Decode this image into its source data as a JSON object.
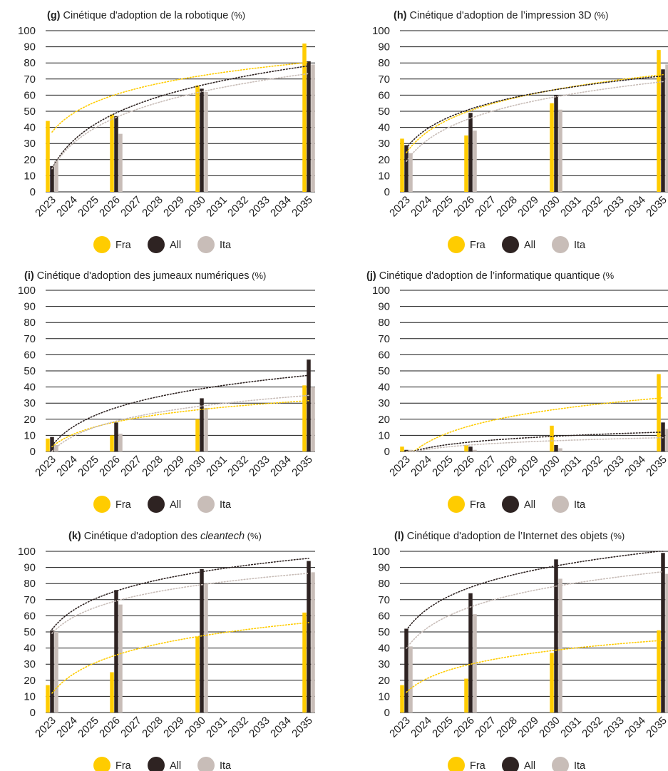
{
  "colors": {
    "fra": "#FFCC00",
    "all": "#2E2322",
    "ita": "#C8BDB8",
    "grid": "#1a1a1a",
    "text": "#222222"
  },
  "legend": [
    "Fra",
    "All",
    "Ita"
  ],
  "chart_data": [
    {
      "type": "bar",
      "title_label": "(g)",
      "title": "Cinétique d'adoption de la robotique",
      "title_suffix": "(%)",
      "ylim": [
        0,
        100
      ],
      "y_ticks": [
        0,
        10,
        20,
        30,
        40,
        50,
        60,
        70,
        80,
        90,
        100
      ],
      "x_ticks": [
        "2023",
        "2024",
        "2025",
        "2026",
        "2027",
        "2028",
        "2029",
        "2030",
        "2031",
        "2032",
        "2033",
        "2034",
        "2035"
      ],
      "bar_years": [
        "2023",
        "2026",
        "2030",
        "2035"
      ],
      "trendline": "logarithmic",
      "series": [
        {
          "name": "Fra",
          "values": [
            44,
            48,
            66,
            92
          ]
        },
        {
          "name": "All",
          "values": [
            16,
            47,
            64,
            81
          ]
        },
        {
          "name": "Ita",
          "values": [
            19,
            36,
            62,
            79
          ]
        }
      ]
    },
    {
      "type": "bar",
      "title_label": "(h)",
      "title": "Cinétique d'adoption de l’impression 3D",
      "title_suffix": "(%)",
      "ylim": [
        0,
        100
      ],
      "y_ticks": [
        0,
        10,
        20,
        30,
        40,
        50,
        60,
        70,
        80,
        90,
        100
      ],
      "x_ticks": [
        "2023",
        "2024",
        "2025",
        "2026",
        "2027",
        "2028",
        "2029",
        "2030",
        "2031",
        "2032",
        "2033",
        "2034",
        "2035"
      ],
      "bar_years": [
        "2023",
        "2026",
        "2030",
        "2035"
      ],
      "trendline": "logarithmic",
      "series": [
        {
          "name": "Fra",
          "values": [
            33,
            35,
            55,
            88
          ]
        },
        {
          "name": "All",
          "values": [
            29,
            49,
            60,
            76
          ]
        },
        {
          "name": "Ita",
          "values": [
            24,
            38,
            51,
            79
          ]
        }
      ]
    },
    {
      "type": "bar",
      "title_label": "(i)",
      "title": "Cinétique d'adoption des jumeaux numériques",
      "title_suffix": "(%)",
      "ylim": [
        0,
        100
      ],
      "y_ticks": [
        0,
        10,
        20,
        30,
        40,
        50,
        60,
        70,
        80,
        90,
        100
      ],
      "x_ticks": [
        "2023",
        "2024",
        "2025",
        "2026",
        "2027",
        "2028",
        "2029",
        "2030",
        "2031",
        "2032",
        "2033",
        "2034",
        "2035"
      ],
      "bar_years": [
        "2023",
        "2026",
        "2030",
        "2035"
      ],
      "trendline": "logarithmic",
      "series": [
        {
          "name": "Fra",
          "values": [
            8,
            10,
            20,
            41
          ]
        },
        {
          "name": "All",
          "values": [
            9,
            18,
            33,
            57
          ]
        },
        {
          "name": "Ita",
          "values": [
            4,
            11,
            27,
            40
          ]
        }
      ]
    },
    {
      "type": "bar",
      "title_label": "(j)",
      "title": "Cinétique d'adoption de l’informatique quantique",
      "title_suffix": "(%",
      "ylim": [
        0,
        100
      ],
      "y_ticks": [
        0,
        10,
        20,
        30,
        40,
        50,
        60,
        70,
        80,
        90,
        100
      ],
      "x_ticks": [
        "2023",
        "2024",
        "2025",
        "2026",
        "2027",
        "2028",
        "2029",
        "2030",
        "2031",
        "2032",
        "2033",
        "2034",
        "2035"
      ],
      "bar_years": [
        "2023",
        "2026",
        "2030",
        "2035"
      ],
      "trendline": "logarithmic",
      "series": [
        {
          "name": "Fra",
          "values": [
            3,
            4,
            16,
            48
          ]
        },
        {
          "name": "All",
          "values": [
            1,
            3,
            4,
            18
          ]
        },
        {
          "name": "Ita",
          "values": [
            1,
            1,
            2,
            14
          ]
        }
      ]
    },
    {
      "type": "bar",
      "title_label": "(k)",
      "title": "Cinétique d'adoption des",
      "title_italic": "cleantech",
      "title_suffix": "(%)",
      "ylim": [
        0,
        100
      ],
      "y_ticks": [
        0,
        10,
        20,
        30,
        40,
        50,
        60,
        70,
        80,
        90,
        100
      ],
      "x_ticks": [
        "2023",
        "2024",
        "2025",
        "2026",
        "2027",
        "2028",
        "2029",
        "2030",
        "2031",
        "2032",
        "2033",
        "2034",
        "2035"
      ],
      "bar_years": [
        "2023",
        "2026",
        "2030",
        "2035"
      ],
      "trendline": "logarithmic",
      "series": [
        {
          "name": "Fra",
          "values": [
            17,
            25,
            47,
            62
          ]
        },
        {
          "name": "All",
          "values": [
            51,
            76,
            89,
            94
          ]
        },
        {
          "name": "Ita",
          "values": [
            50,
            67,
            80,
            87
          ]
        }
      ]
    },
    {
      "type": "bar",
      "title_label": "(l)",
      "title": "Cinétique d'adoption de l’Internet des objets",
      "title_suffix": "(%)",
      "ylim": [
        0,
        100
      ],
      "y_ticks": [
        0,
        10,
        20,
        30,
        40,
        50,
        60,
        70,
        80,
        90,
        100
      ],
      "x_ticks": [
        "2023",
        "2024",
        "2025",
        "2026",
        "2027",
        "2028",
        "2029",
        "2030",
        "2031",
        "2032",
        "2033",
        "2034",
        "2035"
      ],
      "bar_years": [
        "2023",
        "2026",
        "2030",
        "2035"
      ],
      "trendline": "logarithmic",
      "series": [
        {
          "name": "Fra",
          "values": [
            17,
            21,
            37,
            51
          ]
        },
        {
          "name": "All",
          "values": [
            52,
            74,
            95,
            99
          ]
        },
        {
          "name": "Ita",
          "values": [
            41,
            61,
            83,
            86
          ]
        }
      ]
    }
  ]
}
